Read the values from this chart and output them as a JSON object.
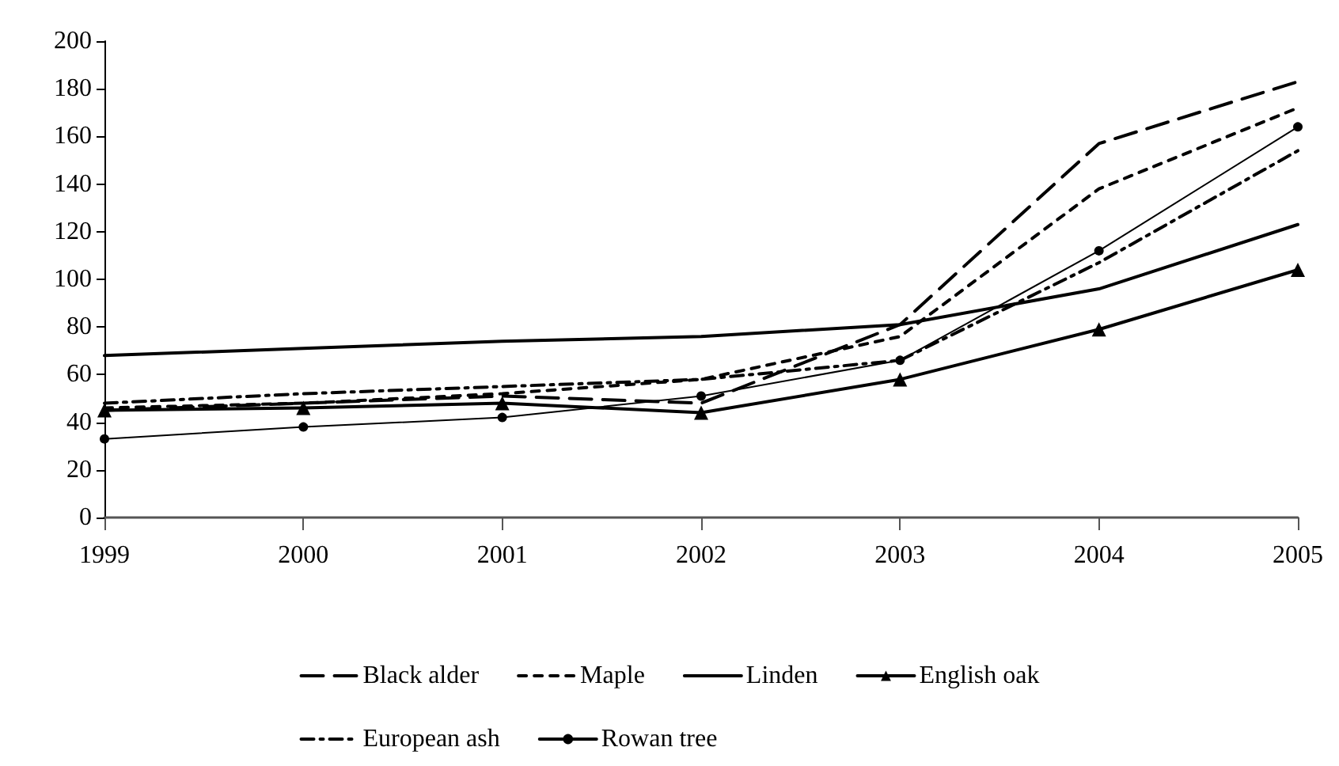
{
  "chart_data": {
    "type": "line",
    "categories": [
      "1999",
      "2000",
      "2001",
      "2002",
      "2003",
      "2004",
      "2005"
    ],
    "ylim": [
      0,
      200
    ],
    "yticks": [
      0,
      20,
      40,
      60,
      80,
      100,
      120,
      140,
      160,
      180,
      200
    ],
    "grid": false,
    "legend": "bottom",
    "series": [
      {
        "name": "Black alder",
        "color": "#000000",
        "line_style": "dashed",
        "marker": "none",
        "values": [
          45,
          48,
          51,
          48,
          81,
          157,
          183
        ]
      },
      {
        "name": "Maple",
        "color": "#000000",
        "line_style": "dotted",
        "marker": "none",
        "values": [
          46,
          48,
          52,
          58,
          76,
          138,
          172
        ]
      },
      {
        "name": "Linden",
        "color": "#000000",
        "line_style": "solid",
        "marker": "none",
        "values": [
          68,
          71,
          74,
          76,
          81,
          96,
          123
        ]
      },
      {
        "name": "English oak",
        "color": "#000000",
        "line_style": "solid",
        "marker": "triangle",
        "values": [
          45,
          46,
          48,
          44,
          58,
          79,
          104
        ]
      },
      {
        "name": "European ash",
        "color": "#000000",
        "line_style": "dashdot",
        "marker": "none",
        "values": [
          48,
          52,
          55,
          58,
          66,
          107,
          154
        ]
      },
      {
        "name": "Rowan tree",
        "color": "#000000",
        "line_style": "solid",
        "marker": "circle",
        "values": [
          33,
          38,
          42,
          51,
          66,
          112,
          164
        ]
      }
    ]
  }
}
